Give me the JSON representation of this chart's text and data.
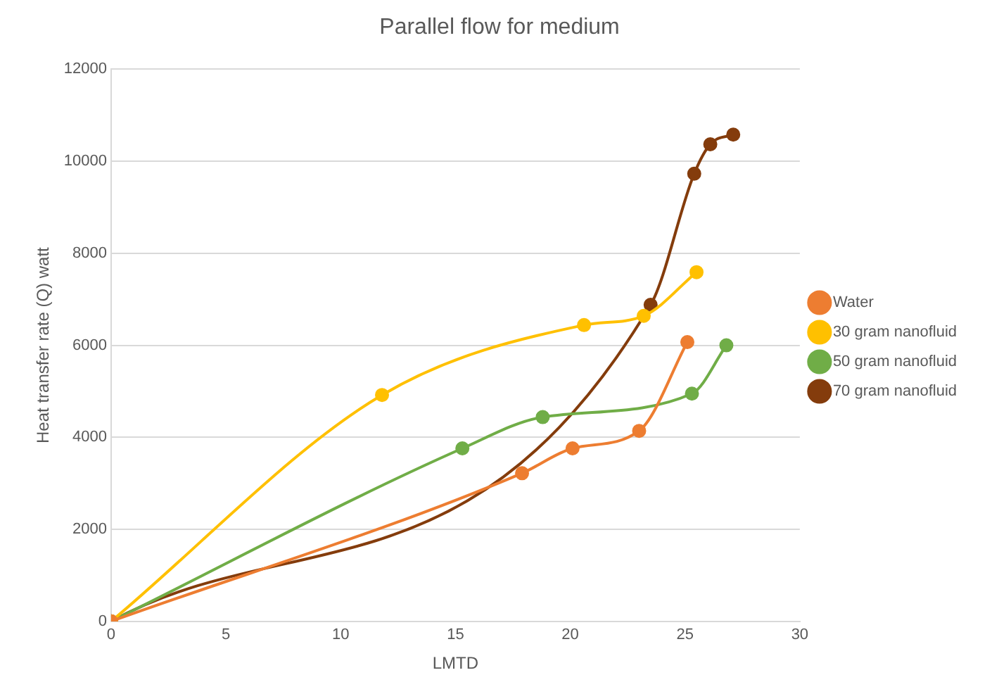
{
  "chart_data": {
    "type": "line",
    "title": "Parallel flow for medium",
    "xlabel": "LMTD",
    "ylabel": "Heat transfer rate (Q) watt",
    "xlim": [
      0,
      30
    ],
    "xticks": [
      0,
      5,
      10,
      15,
      20,
      25,
      30
    ],
    "ylim": [
      0,
      12000
    ],
    "yticks": [
      0,
      2000,
      4000,
      6000,
      8000,
      10000,
      12000
    ],
    "grid": "y",
    "legend": "right",
    "marker": "circle",
    "line_style": "solid",
    "series": [
      {
        "name": "Water",
        "color": "#ed7d31",
        "x": [
          0,
          17.9,
          20.1,
          23.0,
          25.1
        ],
        "values": [
          0,
          3220,
          3760,
          4140,
          6070
        ]
      },
      {
        "name": "30 gram nanofluid",
        "color": "#ffc000",
        "x": [
          0,
          11.8,
          20.6,
          23.2,
          25.5
        ],
        "values": [
          0,
          4920,
          6440,
          6640,
          7590
        ]
      },
      {
        "name": "50 gram nanofluid",
        "color": "#70ad47",
        "x": [
          0,
          15.3,
          18.8,
          25.3,
          26.8
        ],
        "values": [
          0,
          3760,
          4440,
          4950,
          6000
        ]
      },
      {
        "name": "70 gram nanofluid",
        "color": "#843c0c",
        "x": [
          0,
          23.5,
          25.4,
          26.1,
          27.1
        ],
        "values": [
          0,
          6880,
          9730,
          10370,
          10580
        ]
      }
    ]
  }
}
